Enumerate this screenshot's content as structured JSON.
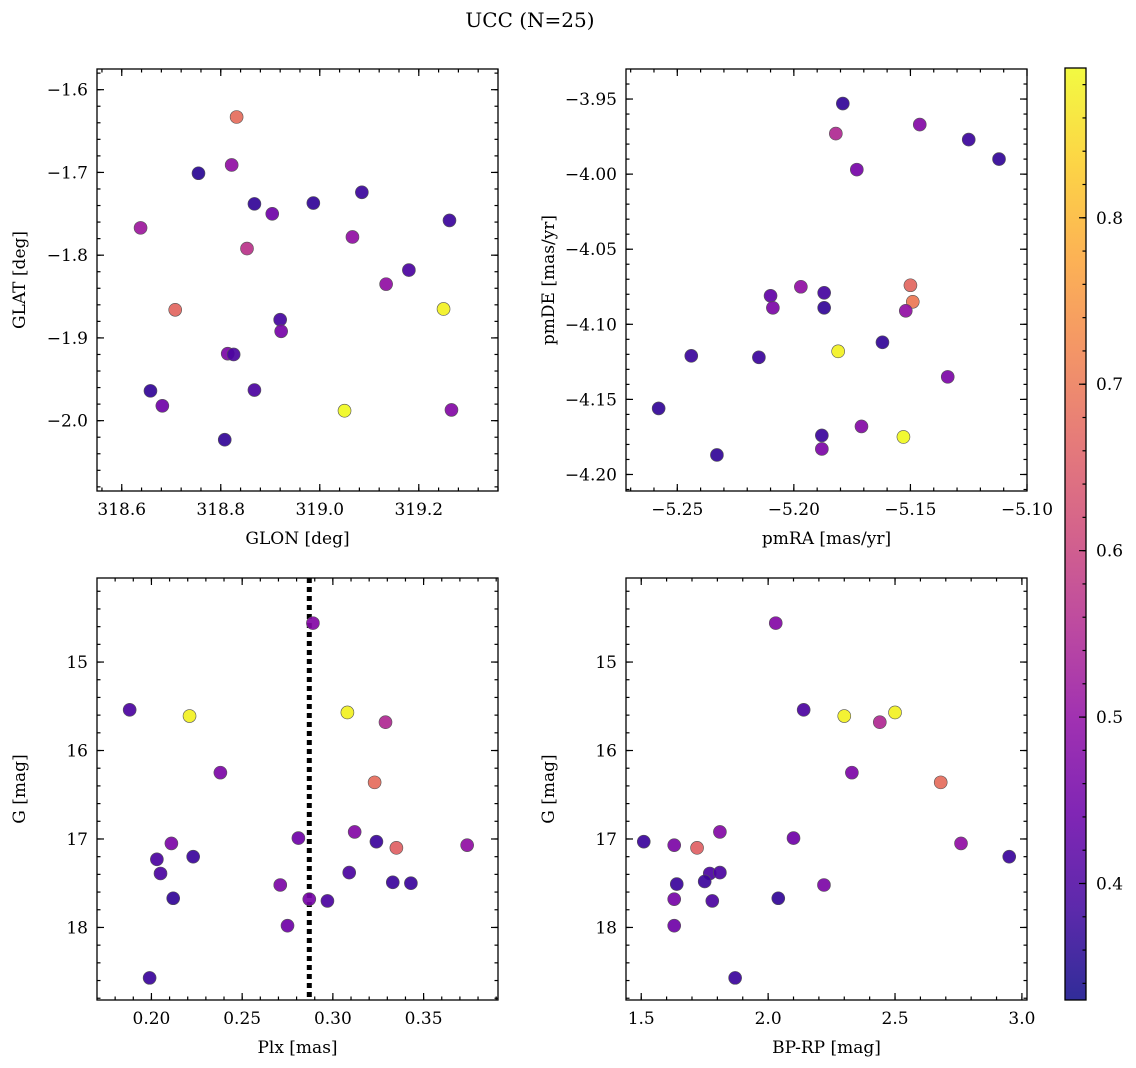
{
  "title": "UCC (N=25)",
  "colorbar": {
    "colormap": "plasma",
    "range": [
      0.33,
      0.89
    ],
    "ticks": [
      0.4,
      0.5,
      0.6,
      0.7,
      0.8
    ],
    "tick_labels": [
      "0.4",
      "0.5",
      "0.6",
      "0.7",
      "0.8"
    ]
  },
  "chart_data": [
    {
      "type": "scatter",
      "xlabel": "GLON [deg]",
      "ylabel": "GLAT [deg]",
      "xlim": [
        318.55,
        319.36
      ],
      "ylim": [
        -2.085,
        -1.575
      ],
      "x_ticks": [
        318.6,
        318.8,
        319.0,
        319.2
      ],
      "x_tick_labels": [
        "318.6",
        "318.8",
        "319.0",
        "319.2"
      ],
      "y_ticks": [
        -1.6,
        -1.7,
        -1.8,
        -1.9,
        -2.0
      ],
      "y_tick_labels": [
        "−1.6",
        "−1.7",
        "−1.8",
        "−1.9",
        "−2.0"
      ],
      "points": [
        {
          "x": 318.832,
          "y": -1.633,
          "c": 0.68
        },
        {
          "x": 318.755,
          "y": -1.701,
          "c": 0.36
        },
        {
          "x": 318.822,
          "y": -1.691,
          "c": 0.5
        },
        {
          "x": 318.868,
          "y": -1.738,
          "c": 0.37
        },
        {
          "x": 318.904,
          "y": -1.75,
          "c": 0.45
        },
        {
          "x": 318.987,
          "y": -1.737,
          "c": 0.37
        },
        {
          "x": 319.085,
          "y": -1.724,
          "c": 0.38
        },
        {
          "x": 319.262,
          "y": -1.758,
          "c": 0.38
        },
        {
          "x": 318.638,
          "y": -1.767,
          "c": 0.52
        },
        {
          "x": 318.853,
          "y": -1.792,
          "c": 0.57
        },
        {
          "x": 319.066,
          "y": -1.778,
          "c": 0.5
        },
        {
          "x": 319.18,
          "y": -1.818,
          "c": 0.4
        },
        {
          "x": 319.134,
          "y": -1.835,
          "c": 0.5
        },
        {
          "x": 318.708,
          "y": -1.866,
          "c": 0.67
        },
        {
          "x": 319.25,
          "y": -1.865,
          "c": 0.88
        },
        {
          "x": 318.92,
          "y": -1.878,
          "c": 0.39
        },
        {
          "x": 318.922,
          "y": -1.892,
          "c": 0.46
        },
        {
          "x": 318.814,
          "y": -1.919,
          "c": 0.47
        },
        {
          "x": 318.826,
          "y": -1.92,
          "c": 0.4
        },
        {
          "x": 318.658,
          "y": -1.964,
          "c": 0.37
        },
        {
          "x": 318.868,
          "y": -1.963,
          "c": 0.4
        },
        {
          "x": 318.682,
          "y": -1.982,
          "c": 0.45
        },
        {
          "x": 319.05,
          "y": -1.988,
          "c": 0.89
        },
        {
          "x": 319.266,
          "y": -1.987,
          "c": 0.48
        },
        {
          "x": 318.808,
          "y": -2.023,
          "c": 0.37
        }
      ]
    },
    {
      "type": "scatter",
      "xlabel": "pmRA [mas/yr]",
      "ylabel": "pmDE [mas/yr]",
      "xlim": [
        -5.272,
        -5.1
      ],
      "ylim": [
        -4.211,
        -3.93
      ],
      "x_ticks": [
        -5.25,
        -5.2,
        -5.15,
        -5.1
      ],
      "x_tick_labels": [
        "−5.25",
        "−5.20",
        "−5.15",
        "−5.10"
      ],
      "y_ticks": [
        -3.95,
        -4.0,
        -4.05,
        -4.1,
        -4.15,
        -4.2
      ],
      "y_tick_labels": [
        "−3.95",
        "−4.00",
        "−4.05",
        "−4.10",
        "−4.15",
        "−4.20"
      ],
      "points": [
        {
          "x": -5.179,
          "y": -3.953,
          "c": 0.37
        },
        {
          "x": -5.146,
          "y": -3.967,
          "c": 0.48
        },
        {
          "x": -5.182,
          "y": -3.973,
          "c": 0.55
        },
        {
          "x": -5.125,
          "y": -3.977,
          "c": 0.38
        },
        {
          "x": -5.112,
          "y": -3.99,
          "c": 0.37
        },
        {
          "x": -5.173,
          "y": -3.997,
          "c": 0.46
        },
        {
          "x": -5.15,
          "y": -4.074,
          "c": 0.67
        },
        {
          "x": -5.197,
          "y": -4.075,
          "c": 0.5
        },
        {
          "x": -5.187,
          "y": -4.079,
          "c": 0.39
        },
        {
          "x": -5.21,
          "y": -4.081,
          "c": 0.43
        },
        {
          "x": -5.149,
          "y": -4.085,
          "c": 0.7
        },
        {
          "x": -5.187,
          "y": -4.089,
          "c": 0.37
        },
        {
          "x": -5.209,
          "y": -4.089,
          "c": 0.47
        },
        {
          "x": -5.152,
          "y": -4.091,
          "c": 0.5
        },
        {
          "x": -5.162,
          "y": -4.112,
          "c": 0.37
        },
        {
          "x": -5.181,
          "y": -4.118,
          "c": 0.88
        },
        {
          "x": -5.244,
          "y": -4.121,
          "c": 0.38
        },
        {
          "x": -5.215,
          "y": -4.122,
          "c": 0.38
        },
        {
          "x": -5.134,
          "y": -4.135,
          "c": 0.47
        },
        {
          "x": -5.258,
          "y": -4.156,
          "c": 0.37
        },
        {
          "x": -5.171,
          "y": -4.168,
          "c": 0.48
        },
        {
          "x": -5.188,
          "y": -4.174,
          "c": 0.38
        },
        {
          "x": -5.153,
          "y": -4.175,
          "c": 0.89
        },
        {
          "x": -5.188,
          "y": -4.183,
          "c": 0.47
        },
        {
          "x": -5.233,
          "y": -4.187,
          "c": 0.37
        }
      ]
    },
    {
      "type": "scatter",
      "xlabel": "Plx [mas]",
      "ylabel": "G [mag]",
      "xlim": [
        0.17,
        0.391
      ],
      "ylim": [
        18.82,
        14.05
      ],
      "x_ticks": [
        0.2,
        0.25,
        0.3,
        0.35
      ],
      "x_tick_labels": [
        "0.20",
        "0.25",
        "0.30",
        "0.35"
      ],
      "y_ticks": [
        15,
        16,
        17,
        18
      ],
      "y_tick_labels": [
        "15",
        "16",
        "17",
        "18"
      ],
      "vertical_line": {
        "x": 0.287,
        "style": "dotted"
      },
      "points": [
        {
          "x": 0.289,
          "y": 14.56,
          "c": 0.48
        },
        {
          "x": 0.188,
          "y": 15.54,
          "c": 0.4
        },
        {
          "x": 0.221,
          "y": 15.61,
          "c": 0.88
        },
        {
          "x": 0.308,
          "y": 15.57,
          "c": 0.88
        },
        {
          "x": 0.329,
          "y": 15.68,
          "c": 0.55
        },
        {
          "x": 0.238,
          "y": 16.25,
          "c": 0.47
        },
        {
          "x": 0.323,
          "y": 16.36,
          "c": 0.68
        },
        {
          "x": 0.312,
          "y": 16.92,
          "c": 0.48
        },
        {
          "x": 0.281,
          "y": 16.99,
          "c": 0.45
        },
        {
          "x": 0.211,
          "y": 17.05,
          "c": 0.47
        },
        {
          "x": 0.324,
          "y": 17.03,
          "c": 0.38
        },
        {
          "x": 0.335,
          "y": 17.1,
          "c": 0.66
        },
        {
          "x": 0.374,
          "y": 17.07,
          "c": 0.5
        },
        {
          "x": 0.203,
          "y": 17.23,
          "c": 0.4
        },
        {
          "x": 0.223,
          "y": 17.2,
          "c": 0.38
        },
        {
          "x": 0.205,
          "y": 17.39,
          "c": 0.4
        },
        {
          "x": 0.309,
          "y": 17.38,
          "c": 0.4
        },
        {
          "x": 0.271,
          "y": 17.52,
          "c": 0.47
        },
        {
          "x": 0.333,
          "y": 17.49,
          "c": 0.38
        },
        {
          "x": 0.343,
          "y": 17.5,
          "c": 0.38
        },
        {
          "x": 0.212,
          "y": 17.67,
          "c": 0.37
        },
        {
          "x": 0.287,
          "y": 17.68,
          "c": 0.46
        },
        {
          "x": 0.297,
          "y": 17.7,
          "c": 0.4
        },
        {
          "x": 0.275,
          "y": 17.98,
          "c": 0.45
        },
        {
          "x": 0.199,
          "y": 18.57,
          "c": 0.38
        }
      ]
    },
    {
      "type": "scatter",
      "xlabel": "BP-RP [mag]",
      "ylabel": "G [mag]",
      "xlim": [
        1.44,
        3.02
      ],
      "ylim": [
        18.82,
        14.05
      ],
      "x_ticks": [
        1.5,
        2.0,
        2.5,
        3.0
      ],
      "x_tick_labels": [
        "1.5",
        "2.0",
        "2.5",
        "3.0"
      ],
      "y_ticks": [
        15,
        16,
        17,
        18
      ],
      "y_tick_labels": [
        "15",
        "16",
        "17",
        "18"
      ],
      "points": [
        {
          "x": 2.03,
          "y": 14.56,
          "c": 0.48
        },
        {
          "x": 2.14,
          "y": 15.54,
          "c": 0.4
        },
        {
          "x": 2.3,
          "y": 15.61,
          "c": 0.88
        },
        {
          "x": 2.5,
          "y": 15.57,
          "c": 0.88
        },
        {
          "x": 2.44,
          "y": 15.68,
          "c": 0.55
        },
        {
          "x": 2.33,
          "y": 16.25,
          "c": 0.47
        },
        {
          "x": 2.68,
          "y": 16.36,
          "c": 0.68
        },
        {
          "x": 1.81,
          "y": 16.92,
          "c": 0.48
        },
        {
          "x": 2.1,
          "y": 16.99,
          "c": 0.45
        },
        {
          "x": 1.51,
          "y": 17.03,
          "c": 0.38
        },
        {
          "x": 1.63,
          "y": 17.07,
          "c": 0.47
        },
        {
          "x": 1.72,
          "y": 17.1,
          "c": 0.66
        },
        {
          "x": 2.76,
          "y": 17.05,
          "c": 0.5
        },
        {
          "x": 2.95,
          "y": 17.2,
          "c": 0.38
        },
        {
          "x": 1.77,
          "y": 17.39,
          "c": 0.4
        },
        {
          "x": 1.81,
          "y": 17.38,
          "c": 0.4
        },
        {
          "x": 1.75,
          "y": 17.48,
          "c": 0.38
        },
        {
          "x": 1.64,
          "y": 17.51,
          "c": 0.38
        },
        {
          "x": 2.22,
          "y": 17.52,
          "c": 0.47
        },
        {
          "x": 1.63,
          "y": 17.68,
          "c": 0.46
        },
        {
          "x": 2.04,
          "y": 17.67,
          "c": 0.37
        },
        {
          "x": 1.78,
          "y": 17.7,
          "c": 0.4
        },
        {
          "x": 1.63,
          "y": 17.98,
          "c": 0.45
        },
        {
          "x": 1.87,
          "y": 18.57,
          "c": 0.38
        }
      ]
    }
  ]
}
